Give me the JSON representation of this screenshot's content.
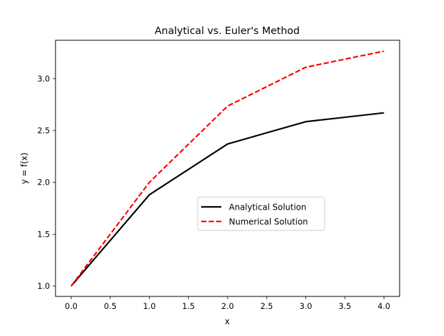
{
  "chart_data": {
    "type": "line",
    "title": "Analytical vs. Euler's Method",
    "xlabel": "x",
    "ylabel": "y = f(x)",
    "xlim": [
      -0.2,
      4.2
    ],
    "ylim": [
      0.9,
      3.37
    ],
    "xticks": [
      "0.0",
      "0.5",
      "1.0",
      "1.5",
      "2.0",
      "2.5",
      "3.0",
      "3.5",
      "4.0"
    ],
    "yticks": [
      "1.0",
      "1.5",
      "2.0",
      "2.5",
      "3.0"
    ],
    "grid": false,
    "legend_position": "center-right",
    "series": [
      {
        "name": "Analytical Solution",
        "color": "#000000",
        "style": "solid",
        "x": [
          0,
          1,
          2,
          3,
          4
        ],
        "values": [
          1.0,
          1.88,
          2.37,
          2.585,
          2.67
        ]
      },
      {
        "name": "Numerical Solution",
        "color": "#ff0000",
        "style": "dashed",
        "x": [
          0,
          1,
          2,
          3,
          4
        ],
        "values": [
          1.0,
          2.0,
          2.735,
          3.11,
          3.265
        ]
      }
    ]
  }
}
